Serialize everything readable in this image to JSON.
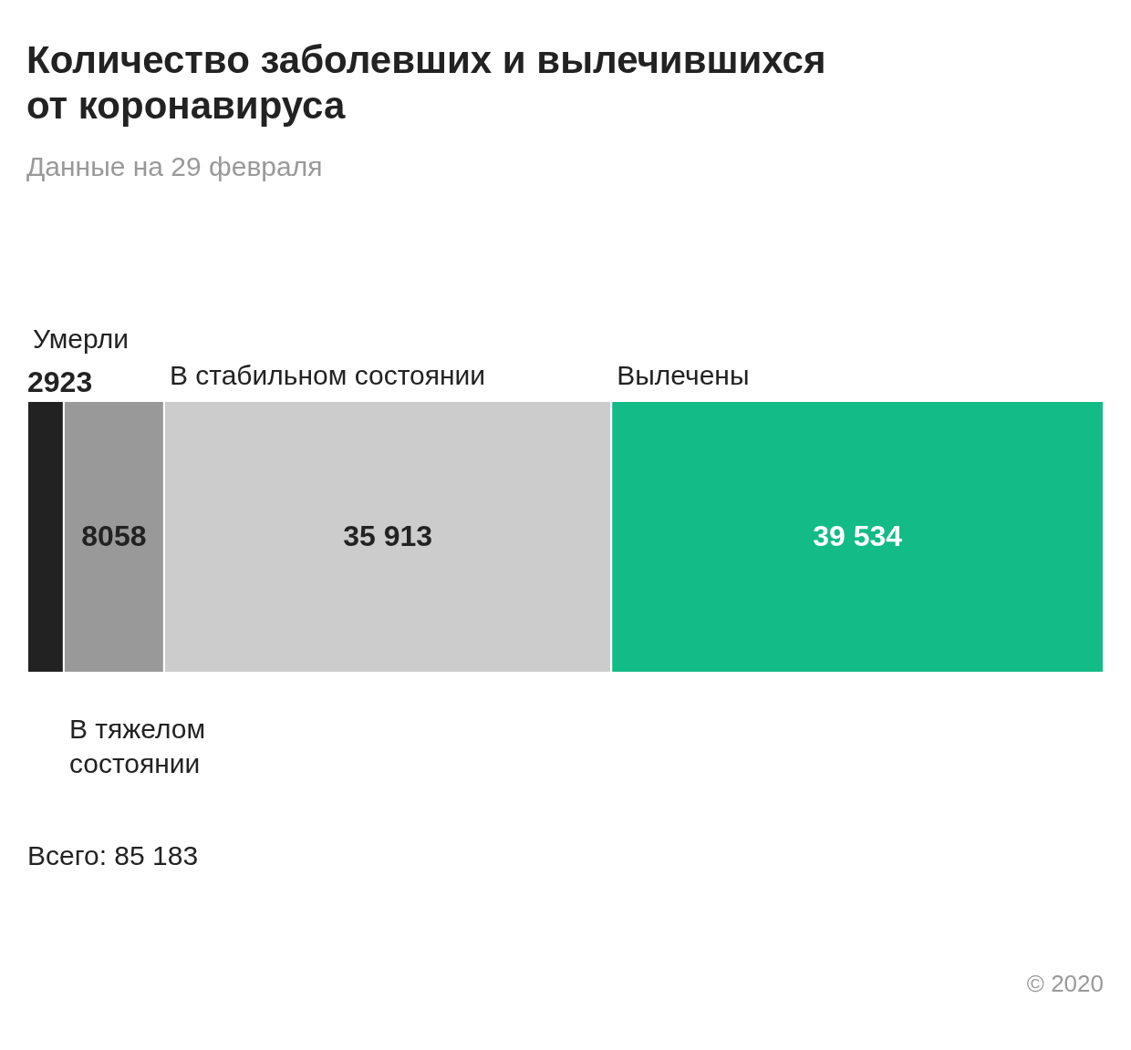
{
  "chart_data": {
    "type": "bar",
    "orientation": "horizontal",
    "stacked": true,
    "title": "Количество заболевших и вылечившихся от коронавируса",
    "subtitle": "Данные на 29 февраля",
    "categories": [
      null
    ],
    "legend": false,
    "series": [
      {
        "name": "Умерли",
        "color": "#222222",
        "values": [
          2923
        ],
        "value_labels": [
          "2923"
        ]
      },
      {
        "name": "В тяжелом состоянии",
        "color": "#999999",
        "values": [
          8058
        ],
        "value_labels": [
          "8058"
        ]
      },
      {
        "name": "В стабильном состоянии",
        "color": "#cccccc",
        "values": [
          35913
        ],
        "value_labels": [
          "35 913"
        ]
      },
      {
        "name": "Вылечены",
        "color": "#13bb87",
        "values": [
          39534
        ],
        "value_labels": [
          "39 534"
        ]
      }
    ],
    "annotations": [
      "Всего: 85 183",
      "© 2020"
    ]
  }
}
